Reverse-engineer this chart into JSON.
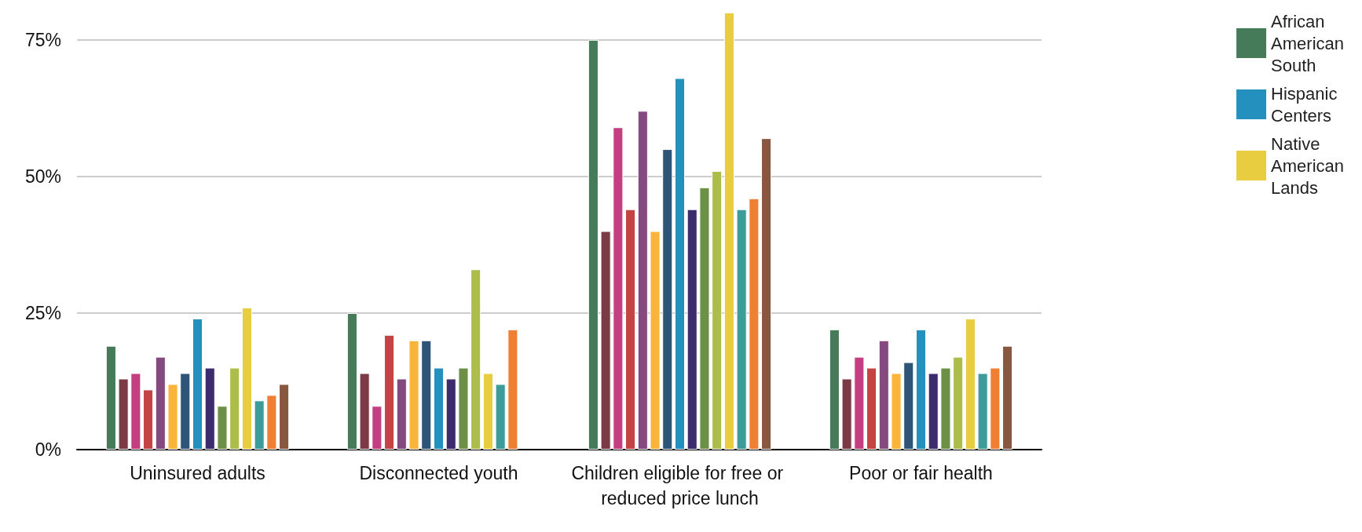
{
  "chart_data": {
    "type": "bar",
    "categories": [
      "Uninsured adults",
      "Disconnected youth",
      "Children eligible for free or reduced price lunch",
      "Poor or fair health"
    ],
    "series": [
      {
        "name": "African American South",
        "color": "#467b5a",
        "values": [
          19,
          25,
          75,
          22
        ]
      },
      {
        "color": "#7b3a45",
        "values": [
          13,
          14,
          40,
          13
        ]
      },
      {
        "color": "#c43f82",
        "values": [
          14,
          8,
          59,
          17
        ]
      },
      {
        "color": "#c44444",
        "values": [
          11,
          21,
          44,
          15
        ]
      },
      {
        "color": "#844a80",
        "values": [
          17,
          13,
          62,
          20
        ]
      },
      {
        "color": "#fbb43a",
        "values": [
          12,
          20,
          40,
          14
        ]
      },
      {
        "color": "#2e5578",
        "values": [
          14,
          20,
          55,
          16
        ]
      },
      {
        "name": "Hispanic Centers",
        "color": "#2390bd",
        "values": [
          24,
          15,
          68,
          22
        ]
      },
      {
        "color": "#3c2c6e",
        "values": [
          15,
          13,
          44,
          14
        ]
      },
      {
        "color": "#6c9146",
        "values": [
          8,
          15,
          48,
          15
        ]
      },
      {
        "color": "#adbd4a",
        "values": [
          15,
          33,
          51,
          17
        ]
      },
      {
        "name": "Native American Lands",
        "color": "#e8cd40",
        "values": [
          26,
          14,
          80,
          24
        ]
      },
      {
        "color": "#3d9b9a",
        "values": [
          9,
          12,
          44,
          14
        ]
      },
      {
        "color": "#ef8033",
        "values": [
          10,
          22,
          46,
          15
        ]
      },
      {
        "color": "#87583f",
        "values": [
          12,
          null,
          57,
          19
        ]
      }
    ],
    "ylim": [
      0,
      80
    ],
    "yticks": [
      {
        "value": 0,
        "label": "0%"
      },
      {
        "value": 25,
        "label": "25%"
      },
      {
        "value": 50,
        "label": "50%"
      },
      {
        "value": 75,
        "label": "75%"
      }
    ],
    "grid": "y",
    "legend": "top right"
  }
}
